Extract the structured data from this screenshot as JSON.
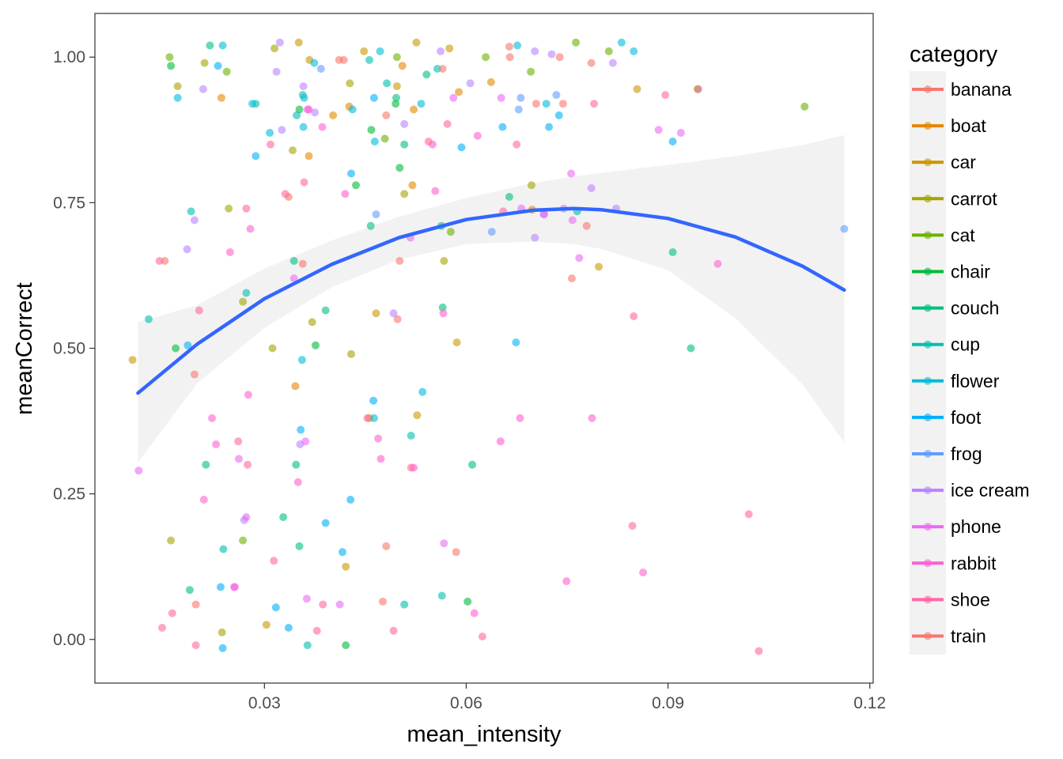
{
  "chart_data": {
    "type": "scatter",
    "xlabel": "mean_intensity",
    "ylabel": "meanCorrect",
    "xlim": [
      0.0048,
      0.1205
    ],
    "ylim": [
      -0.075,
      1.075
    ],
    "xticks": [
      0.03,
      0.06,
      0.09,
      0.12
    ],
    "xtick_labels": [
      "0.03",
      "0.06",
      "0.09",
      "0.12"
    ],
    "yticks": [
      0.0,
      0.25,
      0.5,
      0.75,
      1.0
    ],
    "ytick_labels": [
      "0.00",
      "0.25",
      "0.50",
      "0.75",
      "1.00"
    ],
    "grid": false,
    "legend": {
      "title": "category",
      "position": "right",
      "entries": [
        "banana",
        "boat",
        "car",
        "carrot",
        "cat",
        "chair",
        "couch",
        "cup",
        "flower",
        "foot",
        "frog",
        "ice cream",
        "phone",
        "rabbit",
        "shoe",
        "train"
      ]
    },
    "colors": {
      "banana": "#F8766D",
      "boat": "#E58700",
      "car": "#C99800",
      "carrot": "#A3A500",
      "cat": "#6BB100",
      "chair": "#00BA38",
      "couch": "#00BF7D",
      "cup": "#00C0AF",
      "flower": "#00BCD8",
      "foot": "#00B0F6",
      "frog": "#619CFF",
      "ice cream": "#B983FF",
      "phone": "#E76BF3",
      "rabbit": "#FD61D1",
      "shoe": "#FF67A4",
      "train": "#F8766D"
    },
    "fit": {
      "method": "quadratic smooth",
      "color": "#3366FF",
      "x": [
        0.0112,
        0.02,
        0.03,
        0.04,
        0.05,
        0.06,
        0.07,
        0.076,
        0.08,
        0.09,
        0.1,
        0.11,
        0.1162
      ],
      "y": [
        0.423,
        0.507,
        0.585,
        0.644,
        0.69,
        0.721,
        0.737,
        0.74,
        0.738,
        0.723,
        0.691,
        0.641,
        0.6
      ],
      "ci_low": [
        0.304,
        0.44,
        0.535,
        0.605,
        0.652,
        0.679,
        0.683,
        0.679,
        0.671,
        0.634,
        0.552,
        0.438,
        0.338
      ],
      "ci_high": [
        0.545,
        0.574,
        0.637,
        0.685,
        0.726,
        0.758,
        0.784,
        0.795,
        0.801,
        0.815,
        0.83,
        0.849,
        0.866
      ]
    },
    "series": [
      {
        "name": "banana",
        "x": [
          0.0411,
          0.0664,
          0.0786,
          0.0744,
          0.0665,
          0.0757,
          0.0481,
          0.0357,
          0.0196
        ],
        "y": [
          0.995,
          1.018,
          0.99,
          0.92,
          1.0,
          0.62,
          0.9,
          0.645,
          0.455
        ]
      },
      {
        "name": "boat",
        "x": [
          0.0236,
          0.0402,
          0.0589,
          0.0505,
          0.0637,
          0.0698,
          0.0522,
          0.0366,
          0.0456,
          0.052,
          0.0346,
          0.0426
        ],
        "y": [
          0.93,
          0.9,
          0.94,
          0.985,
          0.957,
          0.738,
          0.91,
          0.83,
          0.38,
          0.78,
          0.435,
          0.915
        ]
      },
      {
        "name": "car",
        "x": [
          0.0448,
          0.0351,
          0.0497,
          0.0575,
          0.0367,
          0.0586,
          0.0797,
          0.0854,
          0.0466,
          0.0527,
          0.0526,
          0.0421,
          0.0104,
          0.0303
        ],
        "y": [
          1.01,
          1.025,
          0.95,
          1.015,
          0.995,
          0.51,
          0.64,
          0.945,
          0.56,
          0.385,
          1.025,
          0.125,
          0.48,
          0.025
        ]
      },
      {
        "name": "carrot",
        "x": [
          0.0247,
          0.0211,
          0.0315,
          0.0427,
          0.0342,
          0.0268,
          0.0567,
          0.0697,
          0.0508,
          0.0161,
          0.0237,
          0.0371,
          0.0312,
          0.0429,
          0.0171
        ],
        "y": [
          0.74,
          0.99,
          1.015,
          0.955,
          0.84,
          0.58,
          0.65,
          0.78,
          0.765,
          0.17,
          0.012,
          0.545,
          0.5,
          0.49,
          0.95
        ]
      },
      {
        "name": "cat",
        "x": [
          0.0244,
          0.0159,
          0.0479,
          0.0629,
          0.0763,
          0.0812,
          0.0944,
          0.1103,
          0.0497,
          0.0696,
          0.0268,
          0.0577
        ],
        "y": [
          0.975,
          1.0,
          0.86,
          1.0,
          1.025,
          1.01,
          0.945,
          0.915,
          1.0,
          0.975,
          0.17,
          0.7
        ]
      },
      {
        "name": "chair",
        "x": [
          0.0352,
          0.0436,
          0.0495,
          0.0161,
          0.0168,
          0.0376,
          0.0459,
          0.0501,
          0.0602,
          0.0421
        ],
        "y": [
          0.91,
          0.78,
          0.92,
          0.985,
          0.5,
          0.505,
          0.875,
          0.81,
          0.065,
          -0.01
        ]
      },
      {
        "name": "couch",
        "x": [
          0.0219,
          0.0496,
          0.0508,
          0.0541,
          0.0563,
          0.0565,
          0.0458,
          0.0664,
          0.0907,
          0.0934,
          0.0391,
          0.0344,
          0.0347,
          0.0352,
          0.0328,
          0.0213,
          0.0189,
          0.0609
        ],
        "y": [
          1.02,
          0.93,
          0.85,
          0.97,
          0.71,
          0.57,
          0.71,
          0.76,
          0.665,
          0.5,
          0.565,
          0.65,
          0.3,
          0.16,
          0.21,
          0.3,
          0.085,
          0.3
        ]
      },
      {
        "name": "cup",
        "x": [
          0.0456,
          0.0482,
          0.0557,
          0.0518,
          0.0287,
          0.0348,
          0.0239,
          0.0357,
          0.0273,
          0.0508,
          0.0564,
          0.0128,
          0.0191,
          0.0364,
          0.0765
        ],
        "y": [
          0.995,
          0.955,
          0.98,
          0.35,
          0.92,
          0.9,
          0.155,
          0.935,
          0.595,
          0.06,
          0.075,
          0.55,
          0.735,
          -0.01,
          0.735
        ]
      },
      {
        "name": "flower",
        "x": [
          0.0171,
          0.0282,
          0.0359,
          0.0431,
          0.0464,
          0.0472,
          0.0676,
          0.0719,
          0.0831,
          0.0535,
          0.0374,
          0.0358,
          0.0463,
          0.0356,
          0.0238,
          0.0849,
          0.0533,
          0.0308
        ],
        "y": [
          0.93,
          0.92,
          0.93,
          0.91,
          0.855,
          1.01,
          1.02,
          0.92,
          1.025,
          0.425,
          0.99,
          0.88,
          0.38,
          0.48,
          1.02,
          1.01,
          0.92,
          0.87
        ]
      },
      {
        "name": "foot",
        "x": [
          0.0231,
          0.0463,
          0.0593,
          0.0654,
          0.0723,
          0.0738,
          0.0907,
          0.0287,
          0.0429,
          0.0462,
          0.0354,
          0.0428,
          0.0416,
          0.0391,
          0.0336,
          0.0317,
          0.0186,
          0.0238,
          0.0235,
          0.0674
        ],
        "y": [
          0.985,
          0.93,
          0.845,
          0.88,
          0.88,
          0.9,
          0.855,
          0.83,
          0.8,
          0.41,
          0.36,
          0.24,
          0.15,
          0.2,
          0.02,
          0.055,
          0.505,
          -0.015,
          0.09,
          0.51
        ]
      },
      {
        "name": "frog",
        "x": [
          0.0678,
          0.0466,
          0.0384,
          0.0638,
          0.1162,
          0.0734,
          0.0681
        ],
        "y": [
          0.91,
          0.73,
          0.98,
          0.7,
          0.705,
          0.935,
          0.93
        ]
      },
      {
        "name": "ice cream",
        "x": [
          0.0209,
          0.0318,
          0.0323,
          0.0358,
          0.0375,
          0.0606,
          0.0702,
          0.0818,
          0.0727,
          0.0562,
          0.0326,
          0.0185,
          0.0196,
          0.027,
          0.0353,
          0.0492,
          0.0508,
          0.0786,
          0.0823,
          0.0702,
          0.0715,
          0.0745
        ],
        "y": [
          0.945,
          0.975,
          1.025,
          0.95,
          0.905,
          0.955,
          1.01,
          0.99,
          1.005,
          1.01,
          0.875,
          0.67,
          0.72,
          0.205,
          0.335,
          0.56,
          0.885,
          0.775,
          0.74,
          0.69,
          0.73,
          0.74
        ]
      },
      {
        "name": "phone",
        "x": [
          0.0113,
          0.0364,
          0.0581,
          0.0652,
          0.0756,
          0.0886,
          0.0919,
          0.0344,
          0.0363,
          0.0412,
          0.0517,
          0.0567,
          0.0682,
          0.0758,
          0.0768,
          0.0716,
          0.0273,
          0.0361,
          0.0262,
          0.0255
        ],
        "y": [
          0.29,
          0.91,
          0.93,
          0.93,
          0.8,
          0.875,
          0.87,
          0.62,
          0.07,
          0.06,
          0.69,
          0.165,
          0.74,
          0.72,
          0.655,
          0.73,
          0.21,
          0.34,
          0.31,
          0.09
        ]
      },
      {
        "name": "rabbit",
        "x": [
          0.0222,
          0.0249,
          0.0279,
          0.035,
          0.042,
          0.0522,
          0.0617,
          0.0651,
          0.068,
          0.0749,
          0.0787,
          0.0863,
          0.0974,
          0.0386,
          0.0366,
          0.0276,
          0.021,
          0.0228,
          0.0256,
          0.0469,
          0.0473,
          0.0554,
          0.0566,
          0.0612,
          0.055
        ],
        "y": [
          0.38,
          0.665,
          0.705,
          0.27,
          0.765,
          0.295,
          0.865,
          0.34,
          0.38,
          0.1,
          0.38,
          0.115,
          0.645,
          0.88,
          0.91,
          0.42,
          0.24,
          0.335,
          0.09,
          0.345,
          0.31,
          0.77,
          0.56,
          0.045,
          0.85
        ]
      },
      {
        "name": "shoe",
        "x": [
          0.0144,
          0.0203,
          0.0261,
          0.0275,
          0.0309,
          0.0314,
          0.0359,
          0.0378,
          0.0492,
          0.0518,
          0.0572,
          0.0624,
          0.0675,
          0.079,
          0.0847,
          0.0849,
          0.0896,
          0.0945,
          0.102,
          0.1035,
          0.0148,
          0.0163,
          0.0198,
          0.0273,
          0.0331,
          0.0387,
          0.0453,
          0.0544,
          0.0655
        ],
        "y": [
          0.65,
          0.565,
          0.34,
          0.3,
          0.85,
          0.135,
          0.785,
          0.015,
          0.015,
          0.295,
          0.885,
          0.005,
          0.85,
          0.92,
          0.195,
          0.555,
          0.935,
          0.945,
          0.215,
          -0.02,
          0.02,
          0.045,
          -0.01,
          0.74,
          0.765,
          0.06,
          0.38,
          0.855,
          0.735
        ]
      },
      {
        "name": "train",
        "x": [
          0.0198,
          0.0336,
          0.0418,
          0.0481,
          0.0565,
          0.0739,
          0.0779,
          0.0152,
          0.0476,
          0.0501,
          0.0585,
          0.0498,
          0.0704
        ],
        "y": [
          0.06,
          0.76,
          0.995,
          0.16,
          0.98,
          1.0,
          0.71,
          0.65,
          0.065,
          0.65,
          0.15,
          0.55,
          0.92
        ]
      }
    ]
  }
}
